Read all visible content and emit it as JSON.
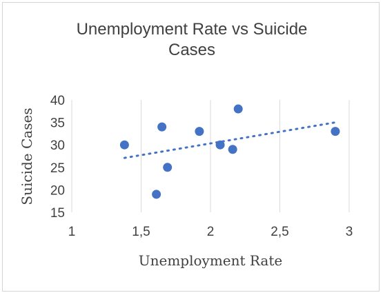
{
  "chart_data": {
    "type": "scatter",
    "title_lines": [
      "Unemployment Rate vs Suicide",
      "Cases"
    ],
    "xlabel": "Unemployment Rate",
    "ylabel": "Suicide Cases",
    "xlim": [
      1,
      3
    ],
    "ylim": [
      15,
      40
    ],
    "xticks": [
      1,
      1.5,
      2,
      2.5,
      3
    ],
    "xtick_labels": [
      "1",
      "1,5",
      "2",
      "2,5",
      "3"
    ],
    "yticks": [
      15,
      20,
      25,
      30,
      35,
      40
    ],
    "ytick_labels": [
      "15",
      "20",
      "25",
      "30",
      "35",
      "40"
    ],
    "grid": "vertical",
    "legend": "none",
    "trendline": {
      "type": "linear",
      "style": "dotted",
      "x": [
        1.38,
        2.9
      ],
      "y": [
        27.1,
        35.0
      ]
    },
    "x": [
      1.38,
      1.61,
      1.65,
      1.69,
      1.92,
      2.07,
      2.16,
      2.2,
      2.9
    ],
    "y": [
      30,
      19,
      34,
      25,
      33,
      30,
      29,
      38,
      33
    ],
    "colors": {
      "marker": "#4472C4",
      "grid": "#d9d9d9",
      "text": "#404040"
    }
  }
}
